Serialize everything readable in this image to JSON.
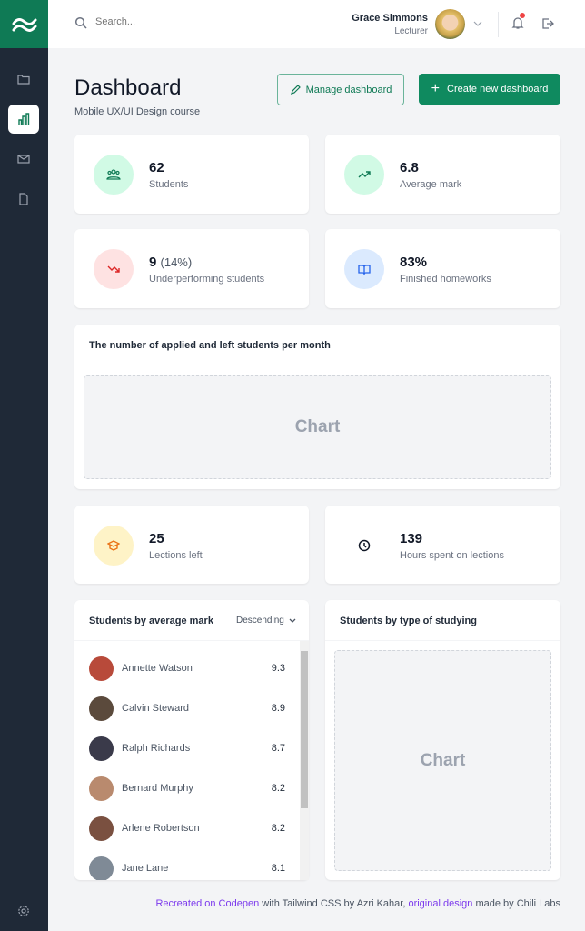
{
  "colors": {
    "brand": "#0f7a55",
    "sidebar": "#1f2937",
    "link": "#7c3aed"
  },
  "sidebar": {
    "items": [
      {
        "icon": "folder-icon"
      },
      {
        "icon": "bar-chart-icon",
        "active": true
      },
      {
        "icon": "mail-icon"
      },
      {
        "icon": "document-icon"
      }
    ],
    "settings_icon": "gear-icon"
  },
  "header": {
    "search_placeholder": "Search...",
    "user_name": "Grace Simmons",
    "user_role": "Lecturer"
  },
  "page": {
    "title": "Dashboard",
    "subtitle": "Mobile UX/UI Design course",
    "manage_label": "Manage dashboard",
    "create_label": "Create new dashboard"
  },
  "stats": [
    {
      "value": "62",
      "label": "Students",
      "icon": "users-icon"
    },
    {
      "value": "6.8",
      "label": "Average mark",
      "icon": "trending-up-icon"
    },
    {
      "value": "9",
      "extra": "(14%)",
      "label": "Underperforming students",
      "icon": "trending-down-icon"
    },
    {
      "value": "83%",
      "label": "Finished homeworks",
      "icon": "book-icon"
    },
    {
      "value": "25",
      "label": "Lections left",
      "icon": "graduation-cap-icon"
    },
    {
      "value": "139",
      "label": "Hours spent on lections",
      "icon": "clock-icon"
    }
  ],
  "chart1": {
    "title": "The number of applied and left students per month",
    "placeholder": "Chart"
  },
  "students": {
    "title": "Students by average mark",
    "sort": "Descending",
    "list": [
      {
        "name": "Annette Watson",
        "mark": "9.3"
      },
      {
        "name": "Calvin Steward",
        "mark": "8.9"
      },
      {
        "name": "Ralph Richards",
        "mark": "8.7"
      },
      {
        "name": "Bernard Murphy",
        "mark": "8.2"
      },
      {
        "name": "Arlene Robertson",
        "mark": "8.2"
      },
      {
        "name": "Jane Lane",
        "mark": "8.1"
      }
    ]
  },
  "chart2": {
    "title": "Students by type of studying",
    "placeholder": "Chart"
  },
  "footer": {
    "link1": "Recreated on Codepen",
    "text1": " with Tailwind CSS by Azri Kahar, ",
    "link2": "original design",
    "text2": " made by Chili Labs"
  }
}
